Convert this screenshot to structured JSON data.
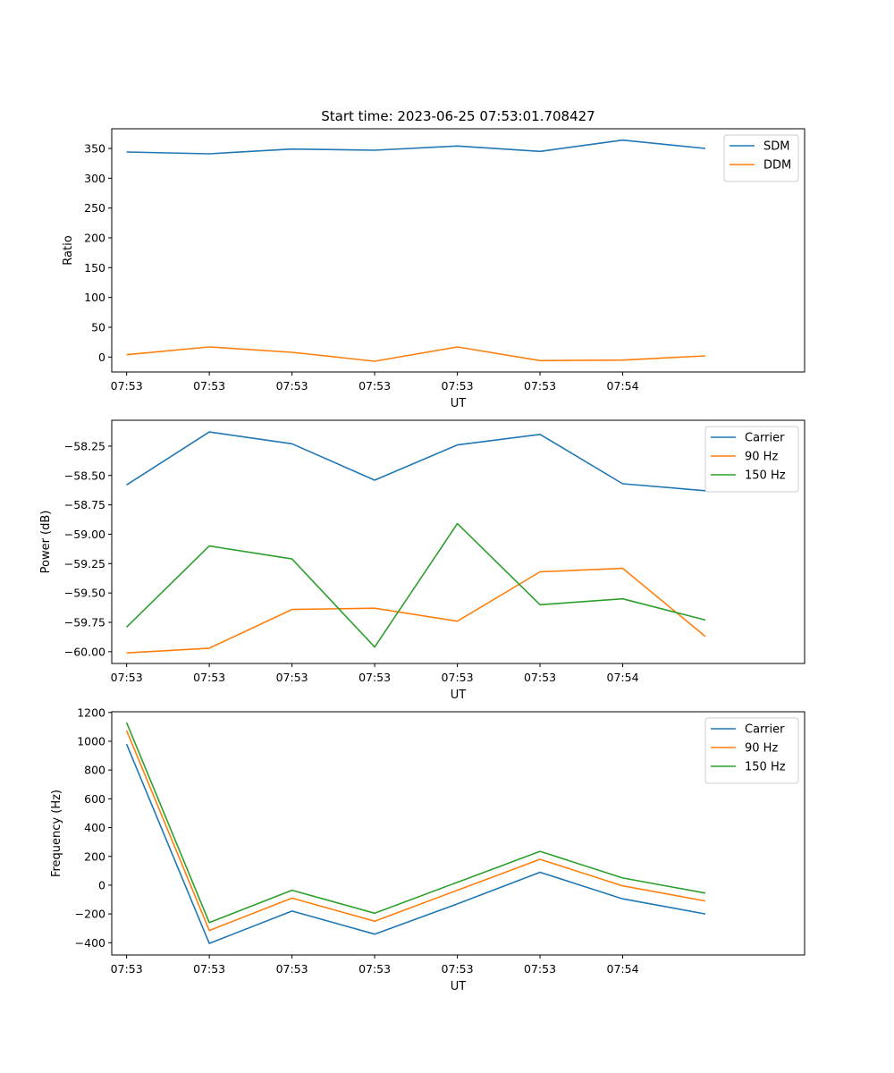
{
  "figure": {
    "title": "Start time: 2023-06-25 07:53:01.708427"
  },
  "chart_data": [
    {
      "type": "line",
      "xlabel": "UT",
      "ylabel": "Ratio",
      "x": [
        1,
        2,
        3,
        4,
        5,
        6,
        7,
        8
      ],
      "xlim": [
        0.82,
        9.2
      ],
      "x_ticks": [
        1,
        2,
        3,
        4,
        5,
        6,
        7
      ],
      "x_tick_labels": [
        "07:53",
        "07:53",
        "07:53",
        "07:53",
        "07:53",
        "07:53",
        "07:54"
      ],
      "ylim": [
        -25,
        383
      ],
      "y_ticks": [
        0,
        50,
        100,
        150,
        200,
        250,
        300,
        350
      ],
      "y_tick_labels": [
        "0",
        "50",
        "100",
        "150",
        "200",
        "250",
        "300",
        "350"
      ],
      "legend_position": "top-right",
      "series": [
        {
          "name": "SDM",
          "color": "#1f77b4",
          "values": [
            344,
            341,
            349,
            347,
            354,
            345,
            364,
            350
          ]
        },
        {
          "name": "DDM",
          "color": "#ff7f0e",
          "values": [
            4,
            17,
            8,
            -7,
            17,
            -6,
            -5,
            2
          ]
        }
      ]
    },
    {
      "type": "line",
      "xlabel": "UT",
      "ylabel": "Power (dB)",
      "x": [
        1,
        2,
        3,
        4,
        5,
        6,
        7,
        8
      ],
      "xlim": [
        0.82,
        9.2
      ],
      "x_ticks": [
        1,
        2,
        3,
        4,
        5,
        6,
        7
      ],
      "x_tick_labels": [
        "07:53",
        "07:53",
        "07:53",
        "07:53",
        "07:53",
        "07:53",
        "07:54"
      ],
      "ylim": [
        -60.1,
        -58.03
      ],
      "y_ticks": [
        -60.0,
        -59.75,
        -59.5,
        -59.25,
        -59.0,
        -58.75,
        -58.5,
        -58.25
      ],
      "y_tick_labels": [
        "−60.00",
        "−59.75",
        "−59.50",
        "−59.25",
        "−59.00",
        "−58.75",
        "−58.50",
        "−58.25"
      ],
      "legend_position": "top-right",
      "series": [
        {
          "name": "Carrier",
          "color": "#1f77b4",
          "values": [
            -58.58,
            -58.13,
            -58.23,
            -58.54,
            -58.24,
            -58.15,
            -58.57,
            -58.63
          ]
        },
        {
          "name": "90 Hz",
          "color": "#ff7f0e",
          "values": [
            -60.01,
            -59.97,
            -59.64,
            -59.63,
            -59.74,
            -59.32,
            -59.29,
            -59.87
          ]
        },
        {
          "name": "150 Hz",
          "color": "#2ca02c",
          "values": [
            -59.79,
            -59.1,
            -59.21,
            -59.96,
            -58.91,
            -59.6,
            -59.55,
            -59.73
          ]
        }
      ]
    },
    {
      "type": "line",
      "xlabel": "UT",
      "ylabel": "Frequency (Hz)",
      "x": [
        1,
        2,
        3,
        4,
        5,
        6,
        7,
        8
      ],
      "xlim": [
        0.82,
        9.2
      ],
      "x_ticks": [
        1,
        2,
        3,
        4,
        5,
        6,
        7
      ],
      "x_tick_labels": [
        "07:53",
        "07:53",
        "07:53",
        "07:53",
        "07:53",
        "07:53",
        "07:54"
      ],
      "ylim": [
        -485,
        1205
      ],
      "y_ticks": [
        -400,
        -200,
        0,
        200,
        400,
        600,
        800,
        1000,
        1200
      ],
      "y_tick_labels": [
        "−400",
        "−200",
        "0",
        "200",
        "400",
        "600",
        "800",
        "1000",
        "1200"
      ],
      "legend_position": "top-right",
      "series": [
        {
          "name": "Carrier",
          "color": "#1f77b4",
          "values": [
            980,
            -405,
            -180,
            -340,
            -130,
            90,
            -95,
            -200
          ]
        },
        {
          "name": "90 Hz",
          "color": "#ff7f0e",
          "values": [
            1075,
            -315,
            -90,
            -250,
            -35,
            180,
            -5,
            -110
          ]
        },
        {
          "name": "150 Hz",
          "color": "#2ca02c",
          "values": [
            1130,
            -260,
            -35,
            -195,
            20,
            235,
            50,
            -55
          ]
        }
      ]
    }
  ]
}
